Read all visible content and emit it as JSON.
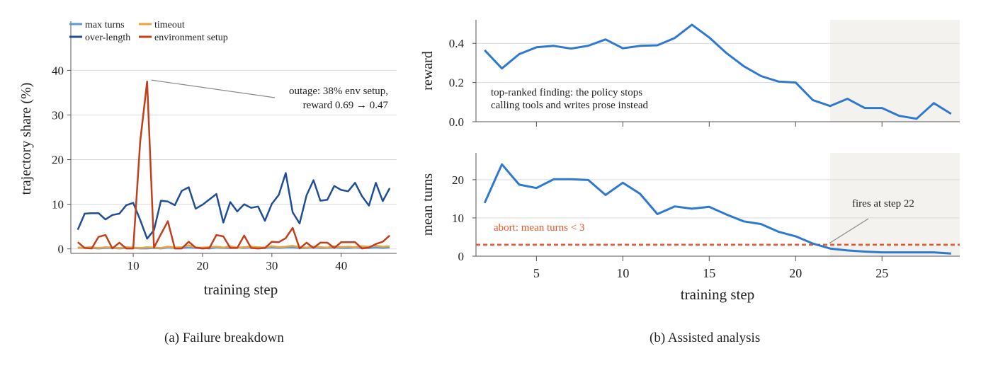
{
  "captions": {
    "a": "(a) Failure breakdown",
    "b": "(b) Assisted analysis"
  },
  "colors": {
    "max_turns": "#5b9bd5",
    "over_length": "#1f4e96",
    "timeout": "#f0a23a",
    "environment_setup": "#c0401e",
    "assisted_line": "#2f78d0",
    "abort_line": "#e8562a",
    "shade": "#f3f2ee",
    "grid": "#d9d9d9",
    "annotation_line": "#888888"
  },
  "chart_data": [
    {
      "type": "line",
      "title": "",
      "xlabel": "training step",
      "ylabel": "trajectory share (%)",
      "xlim": [
        1,
        48
      ],
      "ylim": [
        -1,
        51
      ],
      "xticks": [
        10,
        20,
        30,
        40
      ],
      "yticks": [
        0,
        10,
        20,
        30,
        40
      ],
      "grid": true,
      "legend_position": "top-left",
      "x": [
        2,
        3,
        4,
        5,
        6,
        7,
        8,
        9,
        10,
        11,
        12,
        13,
        14,
        15,
        16,
        17,
        18,
        19,
        20,
        21,
        22,
        23,
        24,
        25,
        26,
        27,
        28,
        29,
        30,
        31,
        32,
        33,
        34,
        35,
        36,
        37,
        38,
        39,
        40,
        41,
        42,
        43,
        44,
        45,
        46,
        47
      ],
      "series": [
        {
          "name": "max turns",
          "color_key": "max_turns",
          "values": [
            0.3,
            0.2,
            0.2,
            0.1,
            0.2,
            0.2,
            0.1,
            0.2,
            0.2,
            0.1,
            0.1,
            0.2,
            0.1,
            0.3,
            0.2,
            0.2,
            0.3,
            0.2,
            0.2,
            0.1,
            0.3,
            0.2,
            0.2,
            0.3,
            0.2,
            0.3,
            0.2,
            0.2,
            0.3,
            0.2,
            0.3,
            0.3,
            0.2,
            0.2,
            0.3,
            0.2,
            0.2,
            0.3,
            0.2,
            0.2,
            0.3,
            0.2,
            0.2,
            0.3,
            0.2,
            0.3
          ]
        },
        {
          "name": "timeout",
          "color_key": "timeout",
          "values": [
            0.2,
            0.3,
            0.4,
            0.2,
            0.4,
            0.3,
            0.2,
            0.4,
            0.3,
            0.2,
            0.4,
            0.3,
            0.2,
            0.5,
            0.3,
            0.4,
            0.8,
            0.3,
            0.3,
            0.4,
            0.5,
            0.3,
            0.6,
            0.3,
            0.4,
            0.5,
            0.4,
            0.3,
            0.6,
            0.4,
            0.5,
            0.7,
            0.4,
            0.3,
            0.5,
            0.4,
            0.3,
            0.6,
            0.4,
            0.5,
            0.4,
            0.6,
            0.5,
            0.7,
            0.5,
            0.6
          ]
        },
        {
          "name": "over-length",
          "color_key": "over_length",
          "values": [
            4.3,
            7.9,
            8.0,
            8.0,
            6.6,
            7.6,
            7.9,
            9.8,
            10.3,
            6.5,
            2.3,
            4.2,
            10.8,
            10.6,
            9.8,
            13.0,
            13.8,
            9.0,
            9.9,
            11.1,
            12.3,
            5.9,
            10.5,
            8.4,
            10.0,
            9.2,
            9.5,
            6.3,
            10.1,
            12.1,
            17.0,
            8.2,
            5.7,
            12.0,
            15.4,
            10.8,
            11.0,
            14.1,
            13.2,
            12.9,
            14.8,
            11.8,
            9.7,
            14.8,
            10.7,
            13.6
          ]
        },
        {
          "name": "environment setup",
          "color_key": "environment_setup",
          "values": [
            1.5,
            0.2,
            0.1,
            2.7,
            3.1,
            0.1,
            1.4,
            0.1,
            0.1,
            24.0,
            37.5,
            0.3,
            3.3,
            6.2,
            0.1,
            0.1,
            1.6,
            0.3,
            0.1,
            0.2,
            3.1,
            2.8,
            0.2,
            0.2,
            3.0,
            0.2,
            0.1,
            0.2,
            1.6,
            1.5,
            2.4,
            4.7,
            0.1,
            1.4,
            0.2,
            1.4,
            1.4,
            0.2,
            1.5,
            1.5,
            1.5,
            0.1,
            0.3,
            1.1,
            1.6,
            3.0
          ]
        }
      ],
      "annotation": {
        "text_line1": "outage: 38% env setup,",
        "text_line2": "reward 0.69 → 0.47",
        "x": 12,
        "y": 37.5
      }
    },
    {
      "type": "line",
      "title": "",
      "xlabel": "",
      "ylabel": "reward",
      "xlim": [
        1.5,
        29.5
      ],
      "ylim": [
        0,
        0.52
      ],
      "xticks": [
        5,
        10,
        15,
        20,
        25
      ],
      "yticks": [
        0.0,
        0.2,
        0.4
      ],
      "ytick_labels": [
        "0.0",
        "0.2",
        "0.4"
      ],
      "grid": true,
      "shaded_region": [
        22,
        29.5
      ],
      "x": [
        2,
        3,
        4,
        5,
        6,
        7,
        8,
        9,
        10,
        11,
        12,
        13,
        14,
        15,
        16,
        17,
        18,
        19,
        20,
        21,
        22,
        23,
        24,
        25,
        26,
        27,
        28,
        29
      ],
      "series": [
        {
          "color_key": "assisted_line",
          "values": [
            0.365,
            0.272,
            0.345,
            0.38,
            0.387,
            0.373,
            0.388,
            0.42,
            0.375,
            0.387,
            0.39,
            0.427,
            0.495,
            0.43,
            0.35,
            0.283,
            0.233,
            0.205,
            0.2,
            0.11,
            0.08,
            0.117,
            0.07,
            0.07,
            0.03,
            0.015,
            0.095,
            0.04
          ]
        }
      ],
      "annotation": {
        "text_line1": "top-ranked finding: the policy stops",
        "text_line2": "calling tools and writes prose instead"
      }
    },
    {
      "type": "line",
      "title": "",
      "xlabel": "training step",
      "ylabel": "mean turns",
      "xlim": [
        1.5,
        29.5
      ],
      "ylim": [
        0,
        27
      ],
      "xticks": [
        5,
        10,
        15,
        20,
        25
      ],
      "yticks": [
        0,
        10,
        20
      ],
      "grid": true,
      "shaded_region": [
        22,
        29.5
      ],
      "threshold": {
        "y": 3,
        "label": "abort: mean turns < 3",
        "color_key": "abort_line"
      },
      "x": [
        2,
        3,
        4,
        5,
        6,
        7,
        8,
        9,
        10,
        11,
        12,
        13,
        14,
        15,
        16,
        17,
        18,
        19,
        20,
        21,
        22,
        23,
        24,
        25,
        26,
        27,
        28,
        29
      ],
      "series": [
        {
          "color_key": "assisted_line",
          "values": [
            13.9,
            24.0,
            18.7,
            17.8,
            20.1,
            20.1,
            19.9,
            16.0,
            19.2,
            16.3,
            11.0,
            13.0,
            12.4,
            12.9,
            10.9,
            9.1,
            8.4,
            6.4,
            5.2,
            3.3,
            2.0,
            1.5,
            1.2,
            1.0,
            1.0,
            1.0,
            1.0,
            0.7
          ]
        }
      ],
      "annotation": {
        "text": "fires at step 22",
        "x": 22,
        "y": 3.4
      }
    }
  ]
}
